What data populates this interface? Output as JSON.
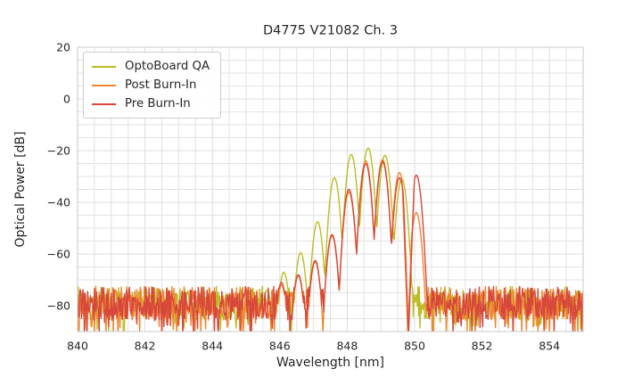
{
  "figure": {
    "background": "#ffffff",
    "text_color": "#262626",
    "grid_color": "#dcdcdc",
    "spine_color": "#c9c9c9"
  },
  "chart_data": {
    "type": "line",
    "title": "D4775 V21082 Ch. 3",
    "xlabel": "Wavelength [nm]",
    "ylabel": "Optical Power [dB]",
    "xlim": [
      840,
      855
    ],
    "ylim": [
      -90,
      20
    ],
    "xticks": [
      840,
      842,
      844,
      846,
      848,
      850,
      852,
      854
    ],
    "yticks": [
      20,
      0,
      -20,
      -40,
      -60,
      -80
    ],
    "x_minor_step_nm": 0.5,
    "y_minor_step_db": 5,
    "grid": true,
    "legend": {
      "position": "upper-left",
      "entries": [
        "OptoBoard QA",
        "Post Burn-In",
        "Pre Burn-In"
      ]
    },
    "mode_model": {
      "halfwidth_nm": 0.25,
      "falloff_db": 30,
      "notch_floor_db": -91,
      "notch_slope_db_per_nm": 350
    },
    "sample_step_nm": 0.02,
    "series": [
      {
        "name": "OptoBoard QA",
        "color": "#bcbd22",
        "noise_floor_db": -79,
        "noise_spread_db": 6.5,
        "deep_dip_chance": 0.12,
        "deep_dip_db": 8,
        "seed": 7,
        "modes": [
          [
            845.62,
            -74
          ],
          [
            846.12,
            -67
          ],
          [
            846.62,
            -59.5
          ],
          [
            847.12,
            -47.5
          ],
          [
            847.62,
            -30.5
          ],
          [
            848.12,
            -21.5
          ],
          [
            848.62,
            -19
          ],
          [
            849.12,
            -21.8
          ],
          [
            849.62,
            -31
          ]
        ],
        "notches": []
      },
      {
        "name": "Post Burn-In",
        "color": "#f0862f",
        "noise_floor_db": -79,
        "noise_spread_db": 6.5,
        "deep_dip_chance": 0.12,
        "deep_dip_db": 8,
        "seed": 13,
        "modes": [
          [
            846.05,
            -72
          ],
          [
            846.55,
            -68.5
          ],
          [
            847.05,
            -63
          ],
          [
            847.55,
            -53
          ],
          [
            848.05,
            -36
          ],
          [
            848.55,
            -24
          ],
          [
            849.05,
            -23.5
          ],
          [
            849.55,
            -28.5
          ],
          [
            850.05,
            -44
          ]
        ],
        "notches": [
          847.28,
          849.8
        ]
      },
      {
        "name": "Pre Burn-In",
        "color": "#d8473c",
        "noise_floor_db": -79,
        "noise_spread_db": 6.5,
        "deep_dip_chance": 0.12,
        "deep_dip_db": 8,
        "seed": 5,
        "modes": [
          [
            846.05,
            -71
          ],
          [
            846.55,
            -68
          ],
          [
            847.05,
            -62.5
          ],
          [
            847.55,
            -52.5
          ],
          [
            848.05,
            -35
          ],
          [
            848.55,
            -25
          ],
          [
            849.05,
            -24.3
          ],
          [
            849.55,
            -30.5
          ],
          [
            850.05,
            -29.5
          ]
        ],
        "notches": [
          849.82
        ]
      }
    ]
  }
}
